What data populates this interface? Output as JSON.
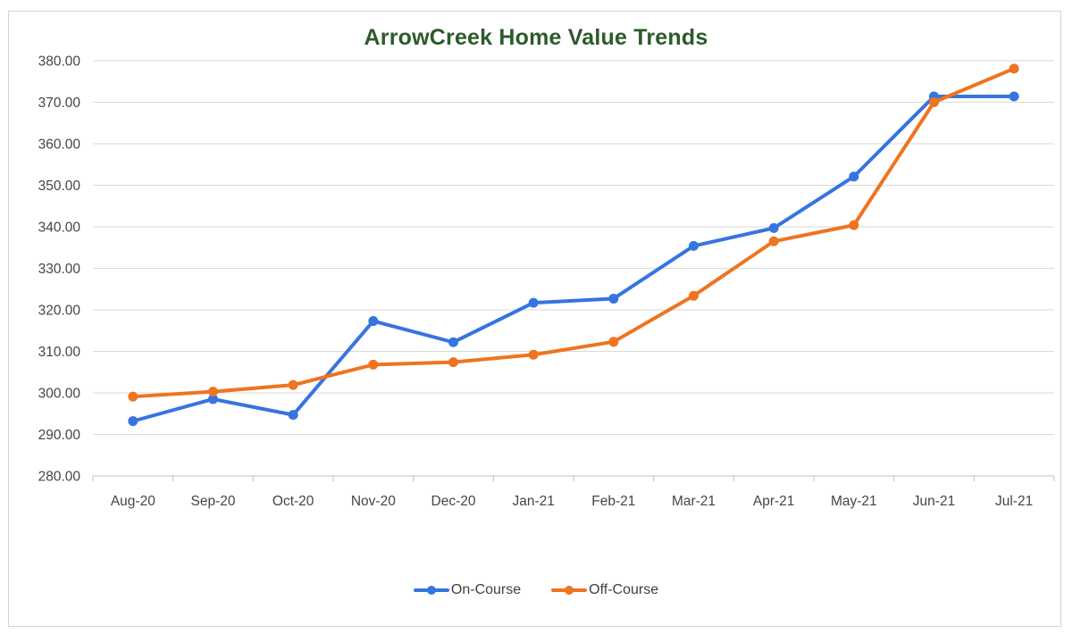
{
  "window": {
    "background": "#ffffff",
    "frame_border_color": "#d4d4d4"
  },
  "chart_data": {
    "type": "line",
    "title": "ArrowCreek Home Value Trends",
    "title_color": "#2d5a2b",
    "categories": [
      "Aug-20",
      "Sep-20",
      "Oct-20",
      "Nov-20",
      "Dec-20",
      "Jan-21",
      "Feb-21",
      "Mar-21",
      "Apr-21",
      "May-21",
      "Jun-21",
      "Jul-21"
    ],
    "series": [
      {
        "name": "On-Course",
        "color": "#3674e0",
        "values": [
          293.2,
          298.5,
          294.7,
          317.3,
          312.2,
          321.7,
          322.7,
          335.4,
          339.7,
          352.1,
          371.4,
          371.4
        ]
      },
      {
        "name": "Off-Course",
        "color": "#ef7420",
        "values": [
          299.1,
          300.3,
          301.9,
          306.8,
          307.4,
          309.2,
          312.3,
          323.4,
          336.5,
          340.4,
          370.0,
          378.1
        ]
      }
    ],
    "ylim": [
      280,
      380
    ],
    "y_tick_step": 10,
    "y_tick_labels": [
      "380.00",
      "370.00",
      "360.00",
      "350.00",
      "340.00",
      "330.00",
      "320.00",
      "310.00",
      "300.00",
      "290.00",
      "280.00"
    ],
    "grid": true,
    "gridline_color": "#d9d9d9",
    "axis_line_color": "#c0c0c0",
    "tick_mark_color": "#c0c0c0",
    "tick_label_color": "#454545",
    "legend_position": "bottom",
    "legend_text_color": "#404040"
  }
}
